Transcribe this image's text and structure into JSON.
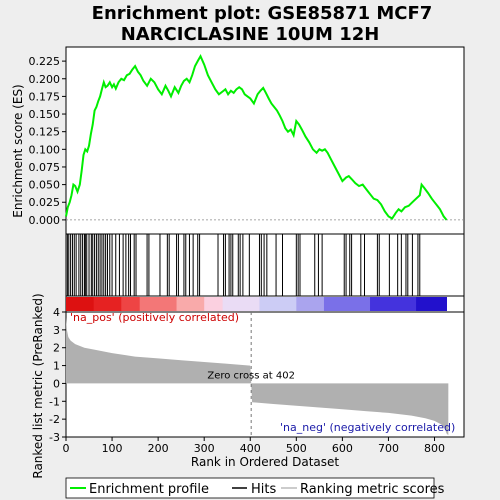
{
  "chart_data": [
    {
      "type": "line",
      "title_line1": "Enrichment plot: GSE85871 MCF7",
      "title_line2": "NARCICLASINE 10UM 12H",
      "ylabel": "Enrichment score (ES)",
      "xlim": [
        0,
        864
      ],
      "ylim": [
        -0.02,
        0.245
      ],
      "yticks": [
        0.0,
        0.025,
        0.05,
        0.075,
        0.1,
        0.125,
        0.15,
        0.175,
        0.2,
        0.225
      ],
      "ytick_labels": [
        "0.000",
        "0.025",
        "0.050",
        "0.075",
        "0.100",
        "0.125",
        "0.150",
        "0.175",
        "0.200",
        "0.225"
      ],
      "line_color": "#00ee00",
      "series": [
        {
          "x": [
            0,
            4,
            8,
            12,
            16,
            20,
            25,
            30,
            34,
            38,
            42,
            46,
            50,
            54,
            58,
            62,
            66,
            70,
            74,
            78,
            82,
            86,
            90,
            95,
            100,
            104,
            108,
            114,
            120,
            126,
            132,
            138,
            144,
            150,
            156,
            162,
            168,
            176,
            184,
            192,
            200,
            208,
            216,
            222,
            228,
            236,
            244,
            250,
            256,
            262,
            268,
            274,
            280,
            286,
            292,
            300,
            308,
            316,
            324,
            332,
            340,
            346,
            352,
            358,
            364,
            370,
            376,
            382,
            388,
            394,
            400,
            408,
            416,
            422,
            428,
            434,
            440,
            446,
            452,
            458,
            464,
            470,
            476,
            482,
            488,
            494,
            500,
            506,
            512,
            520,
            528,
            536,
            544,
            550,
            556,
            562,
            568,
            576,
            584,
            592,
            600,
            608,
            614,
            620,
            628,
            636,
            644,
            650,
            656,
            662,
            668,
            676,
            684,
            692,
            700,
            708,
            716,
            722,
            728,
            736,
            744,
            752,
            760,
            768,
            772,
            778,
            786,
            794,
            800,
            806,
            812,
            820,
            826
          ],
          "y": [
            0.005,
            0.018,
            0.025,
            0.035,
            0.05,
            0.048,
            0.04,
            0.05,
            0.07,
            0.092,
            0.1,
            0.097,
            0.105,
            0.122,
            0.135,
            0.155,
            0.16,
            0.168,
            0.175,
            0.185,
            0.195,
            0.188,
            0.19,
            0.195,
            0.188,
            0.192,
            0.186,
            0.195,
            0.2,
            0.198,
            0.205,
            0.207,
            0.213,
            0.218,
            0.21,
            0.205,
            0.197,
            0.19,
            0.2,
            0.195,
            0.185,
            0.178,
            0.19,
            0.183,
            0.175,
            0.188,
            0.18,
            0.19,
            0.197,
            0.2,
            0.195,
            0.205,
            0.218,
            0.225,
            0.232,
            0.22,
            0.205,
            0.195,
            0.185,
            0.178,
            0.182,
            0.185,
            0.178,
            0.183,
            0.18,
            0.185,
            0.188,
            0.185,
            0.178,
            0.175,
            0.172,
            0.165,
            0.178,
            0.183,
            0.187,
            0.18,
            0.172,
            0.165,
            0.16,
            0.155,
            0.148,
            0.14,
            0.13,
            0.125,
            0.128,
            0.12,
            0.14,
            0.135,
            0.128,
            0.118,
            0.11,
            0.1,
            0.095,
            0.1,
            0.098,
            0.1,
            0.095,
            0.085,
            0.075,
            0.065,
            0.055,
            0.06,
            0.062,
            0.058,
            0.052,
            0.048,
            0.05,
            0.045,
            0.04,
            0.035,
            0.03,
            0.028,
            0.022,
            0.012,
            0.005,
            0.002,
            0.01,
            0.015,
            0.012,
            0.018,
            0.02,
            0.025,
            0.03,
            0.035,
            0.05,
            0.045,
            0.038,
            0.03,
            0.025,
            0.02,
            0.015,
            0.005,
            0.0
          ]
        }
      ]
    },
    {
      "type": "hits",
      "hits_x": [
        3,
        6,
        10,
        14,
        18,
        22,
        28,
        32,
        36,
        40,
        42,
        45,
        50,
        55,
        58,
        62,
        66,
        70,
        74,
        78,
        82,
        86,
        90,
        95,
        100,
        108,
        116,
        124,
        130,
        136,
        140,
        148,
        152,
        176,
        180,
        204,
        220,
        224,
        240,
        244,
        256,
        260,
        268,
        276,
        286,
        290,
        330,
        342,
        346,
        354,
        358,
        362,
        374,
        378,
        384,
        398,
        420,
        424,
        430,
        436,
        456,
        470,
        500,
        504,
        508,
        540,
        548,
        556,
        604,
        608,
        616,
        620,
        640,
        648,
        676,
        680,
        702,
        720,
        728,
        738,
        742,
        752,
        764,
        768
      ]
    },
    {
      "type": "heatmap_bar",
      "colors": [
        "#dd1111",
        "#e62222",
        "#ee4444",
        "#f37777",
        "#f9aaaa",
        "#fbd0e0",
        "#eadcf5",
        "#ccccf5",
        "#aaa4ee",
        "#7a70e8",
        "#4433dd",
        "#2211cc"
      ],
      "stops": [
        0,
        60,
        120,
        160,
        240,
        300,
        340,
        420,
        500,
        560,
        660,
        760
      ]
    },
    {
      "type": "area",
      "ylabel": "Ranked list metric (PreRanked)",
      "xlabel": "Rank in Ordered Dataset",
      "ylim": [
        -3,
        4
      ],
      "yticks": [
        -3,
        -2,
        -1,
        0,
        1,
        2,
        3,
        4
      ],
      "xticks": [
        0,
        100,
        200,
        300,
        400,
        500,
        600,
        700,
        800
      ],
      "zero_cross": 402,
      "zero_cross_label": "Zero cross at 402",
      "pos_label": "'na_pos' (positively correlated)",
      "neg_label": "'na_neg' (negatively correlated)",
      "x": [
        0,
        2,
        5,
        10,
        20,
        40,
        60,
        100,
        150,
        200,
        250,
        300,
        350,
        400,
        402,
        404,
        450,
        500,
        550,
        600,
        650,
        700,
        750,
        780,
        800,
        815,
        822,
        826,
        830
      ],
      "y": [
        3.7,
        3.0,
        2.6,
        2.4,
        2.2,
        2.0,
        1.9,
        1.7,
        1.5,
        1.4,
        1.3,
        1.2,
        1.1,
        1.0,
        0.0,
        -1.05,
        -1.15,
        -1.25,
        -1.35,
        -1.45,
        -1.55,
        -1.65,
        -1.8,
        -1.95,
        -2.1,
        -2.3,
        -2.5,
        -2.8,
        -2.9
      ]
    }
  ],
  "legend": {
    "items": [
      {
        "label": "Enrichment profile",
        "color": "#00ee00"
      },
      {
        "label": "Hits",
        "color": "#000000"
      },
      {
        "label": "Ranking metric scores",
        "color": "#bbbbbb"
      }
    ]
  }
}
